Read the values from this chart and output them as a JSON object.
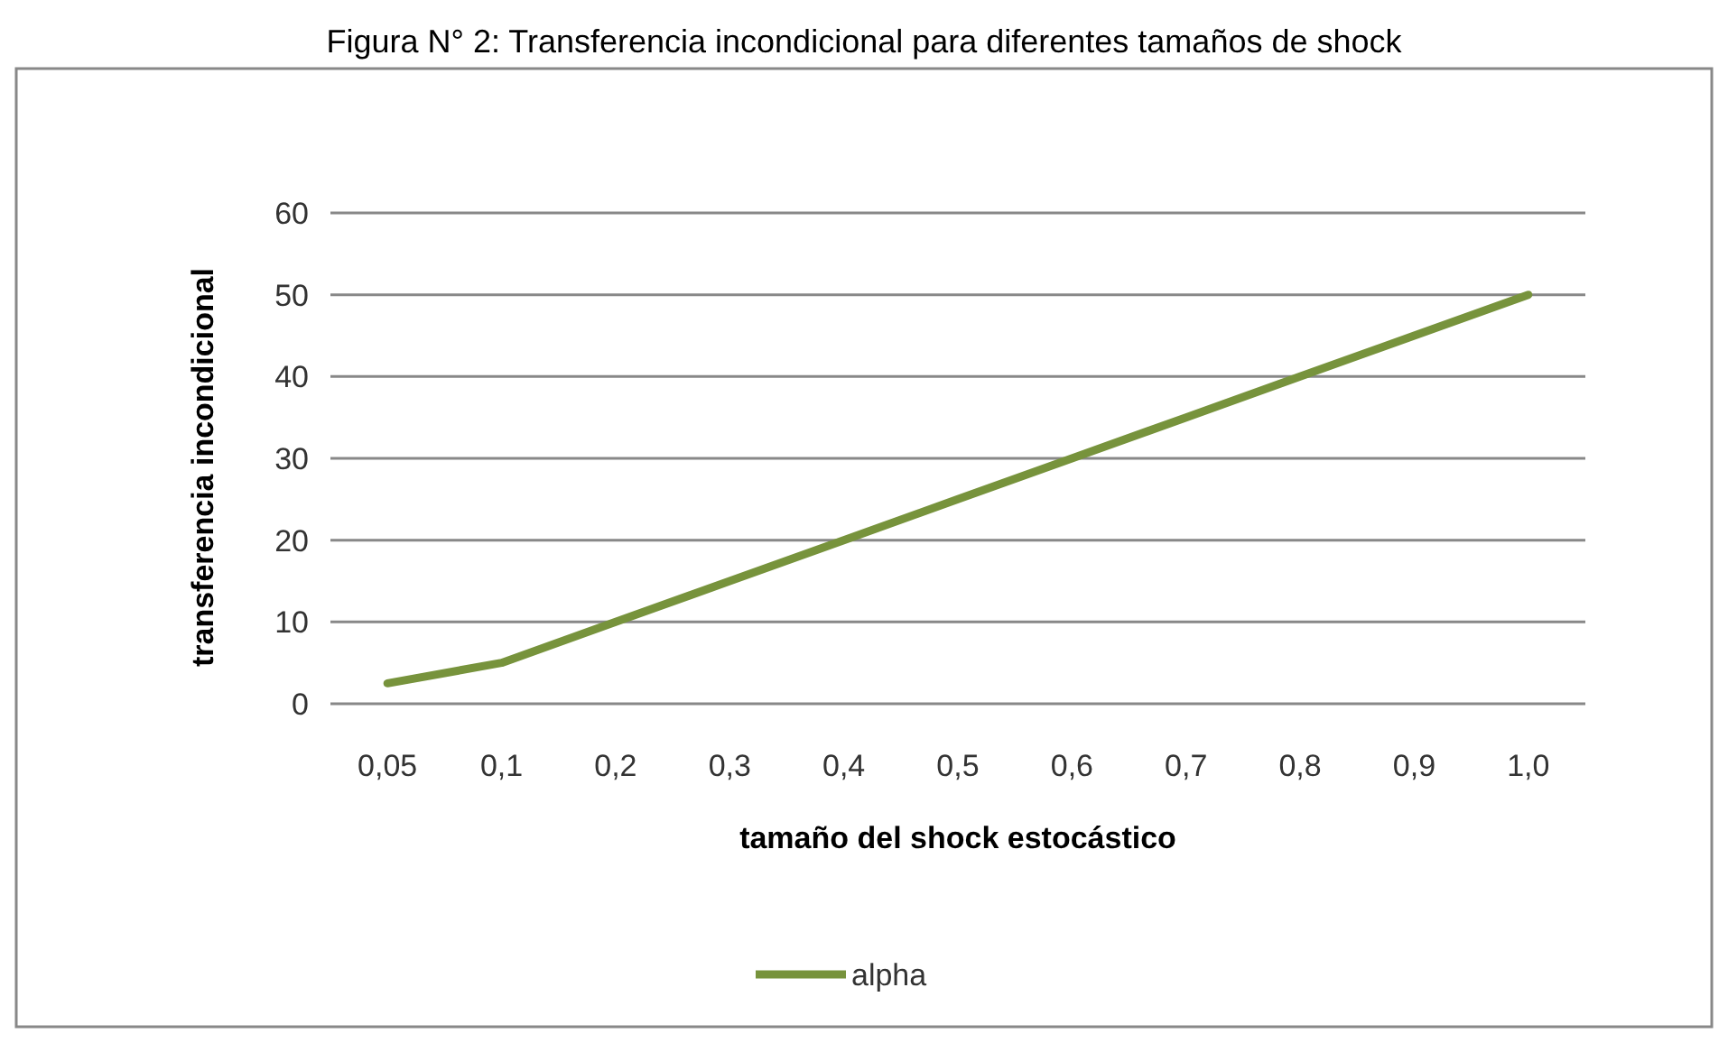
{
  "chart_data": {
    "type": "line",
    "title": "Figura N° 2: Transferencia incondicional para diferentes tamaños de shock",
    "xlabel": "tamaño del shock estocástico",
    "ylabel": "transferencia incondicional",
    "categories": [
      "0,05",
      "0,1",
      "0,2",
      "0,3",
      "0,4",
      "0,5",
      "0,6",
      "0,7",
      "0,8",
      "0,9",
      "1,0"
    ],
    "series": [
      {
        "name": "alpha",
        "color": "#77933c",
        "values": [
          2.5,
          5,
          10,
          15,
          20,
          25,
          30,
          35,
          40,
          45,
          50
        ]
      }
    ],
    "ylim": [
      0,
      60
    ],
    "yticks": [
      0,
      10,
      20,
      30,
      40,
      50,
      60
    ],
    "grid": "y",
    "legend": "bottom",
    "marker": "none",
    "line_style": "solid"
  }
}
